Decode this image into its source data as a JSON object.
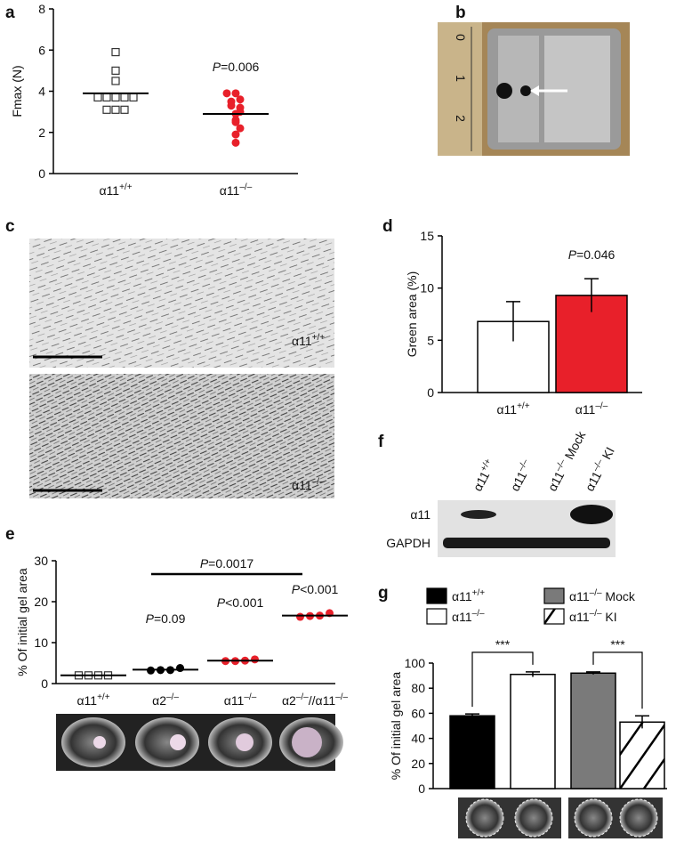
{
  "chart_data": [
    {
      "panel": "a",
      "type": "dotplot",
      "ylabel": "Fmax (N)",
      "categories": [
        "α11+/+",
        "α11–/–"
      ],
      "groups": [
        {
          "marker": "square",
          "color": "#ffffff",
          "values": [
            5.9,
            5.0,
            4.5,
            3.7,
            3.7,
            3.7,
            3.7,
            3.7,
            3.1,
            3.1,
            3.1
          ],
          "mean": 3.9,
          "annotation": null
        },
        {
          "marker": "circle",
          "color": "#e8202a",
          "values": [
            3.9,
            3.9,
            3.6,
            3.5,
            3.3,
            3.2,
            3.0,
            2.9,
            2.6,
            2.5,
            2.2,
            1.9,
            1.5
          ],
          "mean": 2.9,
          "annotation": "P=0.006"
        }
      ],
      "ylim": [
        0,
        8
      ],
      "yticks": [
        0,
        2,
        4,
        6,
        8
      ]
    },
    {
      "panel": "d",
      "type": "bar",
      "ylabel": "Green area (%)",
      "categories": [
        "α11+/+",
        "α11–/–"
      ],
      "values": [
        6.8,
        9.3
      ],
      "errors": [
        1.9,
        1.6
      ],
      "colors": [
        "#ffffff",
        "#e8202a"
      ],
      "annotations": [
        null,
        "P=0.046"
      ],
      "ylim": [
        0,
        15
      ],
      "yticks": [
        0,
        5,
        10,
        15
      ]
    },
    {
      "panel": "e",
      "type": "dotplot",
      "ylabel": "% Of initial gel area",
      "categories": [
        "α11+/+",
        "α2–/–",
        "α11–/–",
        "α2–/–//α11–/–"
      ],
      "groups": [
        {
          "marker": "square",
          "color": "#ffffff",
          "values": [
            2,
            2,
            2,
            2
          ],
          "mean": 2,
          "annotation": null
        },
        {
          "marker": "circle",
          "color": "#000000",
          "values": [
            3.2,
            3.3,
            3.3,
            3.8
          ],
          "mean": 3.4,
          "annotation": "P=0.09"
        },
        {
          "marker": "circle",
          "color": "#e8202a",
          "values": [
            5.5,
            5.5,
            5.6,
            5.9
          ],
          "mean": 5.6,
          "annotation": "P<0.001"
        },
        {
          "marker": "circle",
          "color": "#e8202a",
          "values": [
            16.3,
            16.5,
            16.6,
            17.2
          ],
          "mean": 16.6,
          "annotation": "P<0.001"
        }
      ],
      "bracket": "P=0.0017",
      "ylim": [
        0,
        30
      ],
      "yticks": [
        0,
        10,
        20,
        30
      ]
    },
    {
      "panel": "g",
      "type": "bar",
      "ylabel": "% Of initial gel area",
      "legend": true,
      "categories": [
        "α11+/+",
        "α11–/–",
        "α11–/– Mock",
        "α11–/– KI"
      ],
      "values": [
        58,
        91,
        92,
        53
      ],
      "errors": [
        1.5,
        2,
        1,
        5
      ],
      "colors": [
        "#000000",
        "#ffffff",
        "#7a7a7a",
        "#ffffff"
      ],
      "hatch": [
        false,
        false,
        false,
        true
      ],
      "significance": [
        "***",
        "***"
      ],
      "ylim": [
        0,
        100
      ],
      "yticks": [
        0,
        20,
        40,
        60,
        80,
        100
      ]
    }
  ],
  "photo_b": {
    "panel": "b",
    "ruler": [
      "0",
      "1",
      "2"
    ]
  },
  "micrograph_c": {
    "panel": "c",
    "labels": [
      "α11+/+",
      "α11–/–"
    ]
  },
  "blot_f": {
    "panel": "f",
    "lanes": [
      "α11+/+",
      "α11–/–",
      "α11–/– Mock",
      "α11–/– KI"
    ],
    "rows": [
      "α11",
      "GAPDH"
    ]
  }
}
